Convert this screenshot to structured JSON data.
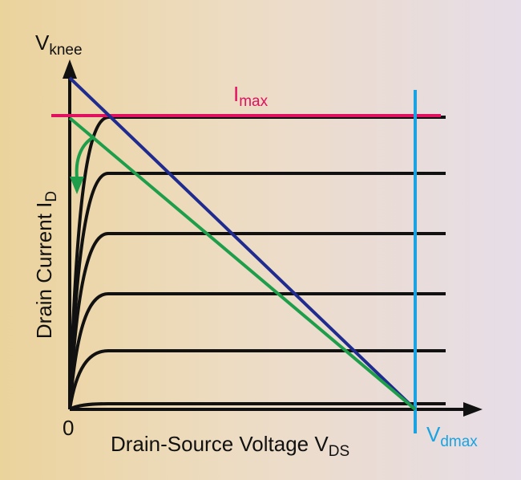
{
  "labels": {
    "vknee_main": "V",
    "vknee_sub": "knee",
    "imax_main": "I",
    "imax_sub": "max",
    "ylabel_main": "Drain Current  I",
    "ylabel_sub": "D",
    "xlabel_main": "Drain-Source Voltage  V",
    "xlabel_sub": "DS",
    "vdmax_main": "V",
    "vdmax_sub": "dmax",
    "origin": "0"
  },
  "colors": {
    "axis": "#111111",
    "curve": "#111111",
    "imax_line": "#e0115f",
    "vdmax_line": "#1aa3e0",
    "load_line_blue": "#1f2b8f",
    "load_line_green": "#1e9e4a",
    "arrow": "#1e9e4a"
  },
  "curve_levels": [
    6,
    5,
    4,
    3,
    2,
    1
  ]
}
